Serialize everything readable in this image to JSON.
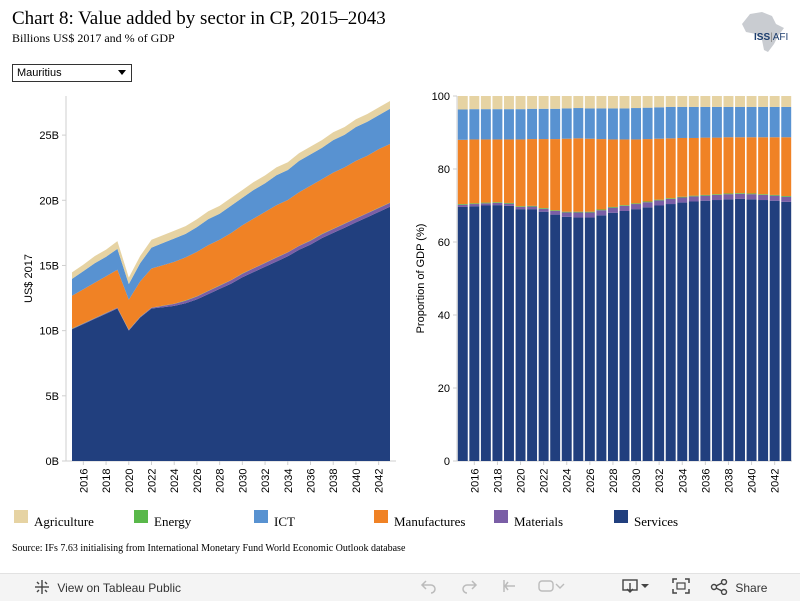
{
  "title": "Chart 8: Value added by sector in CP, 2015–2043",
  "subtitle": "Billions US$ 2017 and % of GDP",
  "logo": {
    "text_main": "ISS",
    "text_sep": "|",
    "text_sub": "AFI",
    "icon": "africa-map-icon"
  },
  "filter": {
    "selected": "Mauritius",
    "icon": "dropdown-arrow-icon"
  },
  "colors": {
    "Agriculture": "#e6d3a3",
    "Energy": "#59b84a",
    "ICT": "#5892d1",
    "Manufactures": "#f08225",
    "Materials": "#7a5ea6",
    "Services": "#213f7e"
  },
  "legend": [
    {
      "label": "Agriculture",
      "color": "#e6d3a3"
    },
    {
      "label": "Energy",
      "color": "#59b84a"
    },
    {
      "label": "ICT",
      "color": "#5892d1"
    },
    {
      "label": "Manufactures",
      "color": "#f08225"
    },
    {
      "label": "Materials",
      "color": "#7a5ea6"
    },
    {
      "label": "Services",
      "color": "#213f7e"
    }
  ],
  "source": "Source: IFs 7.63 initialising from International Monetary Fund World Economic Outlook database",
  "toolbar": {
    "view_label": "View on Tableau Public",
    "share_label": "Share",
    "icons": [
      "tableau-icon",
      "undo-icon",
      "redo-icon",
      "revert-icon",
      "forward-icon",
      "download-icon",
      "fullscreen-icon",
      "share-icon"
    ]
  },
  "chart_data": [
    {
      "type": "area",
      "stacked": true,
      "ylabel": "US$ 2017",
      "xlabel": "",
      "ylim": [
        0,
        28
      ],
      "yticks": [
        0,
        5,
        10,
        15,
        20,
        25
      ],
      "ytick_labels": [
        "0B",
        "5B",
        "10B",
        "15B",
        "20B",
        "25B"
      ],
      "x_tick_labels": [
        "2016",
        "2018",
        "2020",
        "2022",
        "2024",
        "2026",
        "2028",
        "2030",
        "2032",
        "2034",
        "2036",
        "2038",
        "2040",
        "2042"
      ],
      "x": [
        2015,
        2016,
        2017,
        2018,
        2019,
        2020,
        2021,
        2022,
        2023,
        2024,
        2025,
        2026,
        2027,
        2028,
        2029,
        2030,
        2031,
        2032,
        2033,
        2034,
        2035,
        2036,
        2037,
        2038,
        2039,
        2040,
        2041,
        2042,
        2043
      ],
      "series": [
        {
          "name": "Services",
          "values": [
            10.1,
            10.5,
            10.9,
            11.3,
            11.7,
            10.0,
            11.0,
            11.7,
            11.8,
            11.9,
            12.1,
            12.4,
            12.8,
            13.2,
            13.6,
            14.1,
            14.5,
            14.9,
            15.3,
            15.7,
            16.2,
            16.6,
            17.1,
            17.5,
            17.9,
            18.3,
            18.7,
            19.1,
            19.5
          ]
        },
        {
          "name": "Materials",
          "values": [
            0.05,
            0.05,
            0.05,
            0.05,
            0.05,
            0.05,
            0.05,
            0.05,
            0.1,
            0.15,
            0.2,
            0.22,
            0.24,
            0.25,
            0.26,
            0.27,
            0.28,
            0.29,
            0.3,
            0.3,
            0.3,
            0.3,
            0.3,
            0.3,
            0.3,
            0.3,
            0.3,
            0.3,
            0.3
          ]
        },
        {
          "name": "Energy",
          "values": [
            0.02,
            0.02,
            0.02,
            0.02,
            0.02,
            0.02,
            0.02,
            0.02,
            0.02,
            0.02,
            0.02,
            0.02,
            0.02,
            0.02,
            0.02,
            0.02,
            0.02,
            0.02,
            0.02,
            0.02,
            0.02,
            0.02,
            0.02,
            0.02,
            0.02,
            0.02,
            0.02,
            0.02,
            0.02
          ]
        },
        {
          "name": "Manufactures",
          "values": [
            2.5,
            2.6,
            2.7,
            2.8,
            2.9,
            2.3,
            2.7,
            3.0,
            3.1,
            3.2,
            3.3,
            3.4,
            3.5,
            3.5,
            3.6,
            3.7,
            3.8,
            3.9,
            4.0,
            4.0,
            4.1,
            4.2,
            4.2,
            4.3,
            4.3,
            4.4,
            4.4,
            4.5,
            4.5
          ]
        },
        {
          "name": "ICT",
          "values": [
            1.3,
            1.4,
            1.5,
            1.5,
            1.6,
            1.2,
            1.4,
            1.6,
            1.7,
            1.8,
            1.8,
            1.9,
            2.0,
            2.0,
            2.1,
            2.1,
            2.2,
            2.2,
            2.3,
            2.3,
            2.4,
            2.4,
            2.4,
            2.5,
            2.5,
            2.6,
            2.6,
            2.6,
            2.7
          ]
        },
        {
          "name": "Agriculture",
          "values": [
            0.5,
            0.5,
            0.55,
            0.55,
            0.6,
            0.5,
            0.55,
            0.6,
            0.6,
            0.6,
            0.6,
            0.6,
            0.6,
            0.6,
            0.6,
            0.6,
            0.6,
            0.6,
            0.6,
            0.6,
            0.6,
            0.6,
            0.6,
            0.6,
            0.6,
            0.6,
            0.6,
            0.6,
            0.6
          ]
        }
      ]
    },
    {
      "type": "bar",
      "stacked": true,
      "ylabel": "Proportion of GDP (%)",
      "xlabel": "",
      "ylim": [
        0,
        100
      ],
      "yticks": [
        0,
        20,
        40,
        60,
        80,
        100
      ],
      "x_tick_labels": [
        "2016",
        "2018",
        "2020",
        "2022",
        "2024",
        "2026",
        "2028",
        "2030",
        "2032",
        "2034",
        "2036",
        "2038",
        "2040",
        "2042"
      ],
      "x": [
        2015,
        2016,
        2017,
        2018,
        2019,
        2020,
        2021,
        2022,
        2023,
        2024,
        2025,
        2026,
        2027,
        2028,
        2029,
        2030,
        2031,
        2032,
        2033,
        2034,
        2035,
        2036,
        2037,
        2038,
        2039,
        2040,
        2041,
        2042,
        2043
      ],
      "series": [
        {
          "name": "Services",
          "values": [
            69.6,
            69.8,
            70.0,
            70.1,
            69.9,
            69.0,
            69.0,
            68.3,
            67.5,
            66.9,
            66.7,
            66.7,
            67.3,
            68.0,
            68.5,
            69.0,
            69.5,
            70.0,
            70.4,
            70.8,
            71.1,
            71.3,
            71.5,
            71.7,
            71.8,
            71.7,
            71.5,
            71.3,
            71.0
          ]
        },
        {
          "name": "Materials",
          "values": [
            0.6,
            0.6,
            0.6,
            0.6,
            0.6,
            0.6,
            0.7,
            0.8,
            1.0,
            1.2,
            1.4,
            1.4,
            1.4,
            1.4,
            1.4,
            1.4,
            1.4,
            1.4,
            1.4,
            1.4,
            1.4,
            1.4,
            1.4,
            1.4,
            1.4,
            1.4,
            1.4,
            1.4,
            1.4
          ]
        },
        {
          "name": "Energy",
          "values": [
            0.2,
            0.2,
            0.2,
            0.2,
            0.2,
            0.2,
            0.2,
            0.2,
            0.2,
            0.2,
            0.2,
            0.2,
            0.2,
            0.2,
            0.2,
            0.2,
            0.2,
            0.2,
            0.2,
            0.2,
            0.2,
            0.2,
            0.2,
            0.2,
            0.2,
            0.2,
            0.2,
            0.2,
            0.2
          ]
        },
        {
          "name": "Manufactures",
          "values": [
            17.6,
            17.5,
            17.3,
            17.2,
            17.4,
            18.3,
            18.3,
            18.9,
            19.5,
            20.0,
            20.1,
            20.0,
            19.3,
            18.5,
            18.0,
            17.5,
            17.1,
            16.7,
            16.4,
            16.1,
            15.8,
            15.7,
            15.5,
            15.4,
            15.3,
            15.4,
            15.6,
            15.8,
            16.1
          ]
        },
        {
          "name": "ICT",
          "values": [
            8.3,
            8.3,
            8.3,
            8.3,
            8.3,
            8.3,
            8.3,
            8.3,
            8.3,
            8.3,
            8.3,
            8.3,
            8.4,
            8.5,
            8.5,
            8.6,
            8.6,
            8.6,
            8.6,
            8.5,
            8.5,
            8.4,
            8.4,
            8.3,
            8.3,
            8.3,
            8.3,
            8.3,
            8.3
          ]
        },
        {
          "name": "Agriculture",
          "values": [
            3.7,
            3.6,
            3.6,
            3.6,
            3.6,
            3.6,
            3.5,
            3.5,
            3.5,
            3.4,
            3.3,
            3.4,
            3.4,
            3.4,
            3.4,
            3.3,
            3.2,
            3.1,
            3.0,
            3.0,
            3.0,
            3.0,
            3.0,
            3.0,
            3.0,
            3.0,
            3.0,
            3.0,
            3.0
          ]
        }
      ]
    }
  ]
}
